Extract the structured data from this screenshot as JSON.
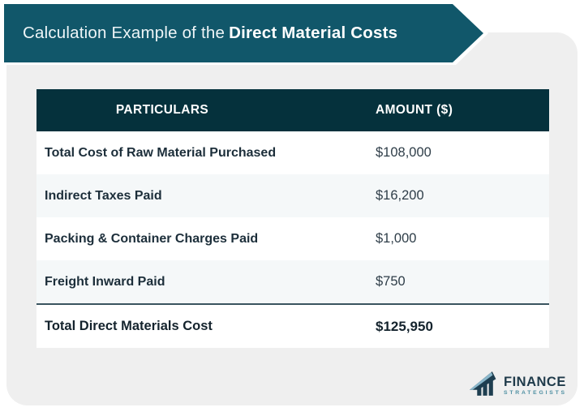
{
  "banner": {
    "title_regular": "Calculation Example of the",
    "title_bold": "Direct Material Costs",
    "bg_color": "#11576a"
  },
  "table": {
    "headers": [
      "PARTICULARS",
      "AMOUNT ($)"
    ],
    "header_bg": "#05313c",
    "rows": [
      {
        "particulars": "Total Cost of Raw Material Purchased",
        "amount": "$108,000"
      },
      {
        "particulars": "Indirect Taxes Paid",
        "amount": "$16,200"
      },
      {
        "particulars": "Packing & Container Charges Paid",
        "amount": "$1,000"
      },
      {
        "particulars": "Freight Inward Paid",
        "amount": "$750"
      }
    ],
    "total_row": {
      "particulars": "Total Direct Materials Cost",
      "amount": "$125,950"
    }
  },
  "logo": {
    "icon": "bar-chart-growth-icon",
    "name": "FINANCE",
    "subtitle": "STRATEGISTS",
    "name_color": "#1f3a4a",
    "subtitle_color": "#4e8fa2"
  },
  "colors": {
    "card_bg": "#efefef",
    "row_alt_bg": "#f5f8f9",
    "divider": "#3a545f",
    "label_text": "#1c2e3a",
    "amount_text": "#2e3d48"
  },
  "chart_data": {
    "type": "table",
    "title": "Calculation Example of the Direct Material Costs",
    "columns": [
      "PARTICULARS",
      "AMOUNT ($)"
    ],
    "rows": [
      [
        "Total Cost of Raw Material Purchased",
        108000
      ],
      [
        "Indirect Taxes Paid",
        16200
      ],
      [
        "Packing & Container Charges Paid",
        1000
      ],
      [
        "Freight Inward Paid",
        750
      ],
      [
        "Total Direct Materials Cost",
        125950
      ]
    ]
  }
}
